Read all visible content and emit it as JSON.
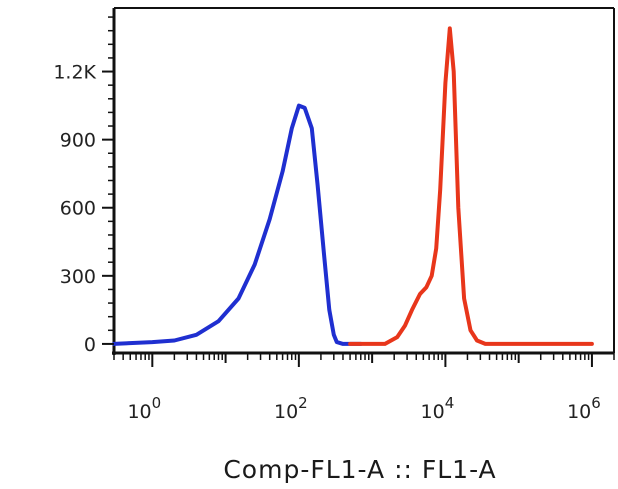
{
  "chart_data": {
    "type": "line",
    "title": "",
    "xlabel": "Comp-FL1-A :: FL1-A",
    "ylabel": "",
    "x_scale": "log",
    "xlim": [
      0.3,
      2000000
    ],
    "ylim": [
      -40,
      1480
    ],
    "grid": false,
    "legend": "none",
    "y_ticks": [
      {
        "value": 0,
        "label": "0"
      },
      {
        "value": 300,
        "label": "300"
      },
      {
        "value": 600,
        "label": "600"
      },
      {
        "value": 900,
        "label": "900"
      },
      {
        "value": 1200,
        "label": "1.2K"
      }
    ],
    "x_ticks": [
      {
        "value": 1,
        "base": "10",
        "exp": "0"
      },
      {
        "value": 100,
        "base": "10",
        "exp": "2"
      },
      {
        "value": 10000,
        "base": "10",
        "exp": "4"
      },
      {
        "value": 1000000,
        "base": "10",
        "exp": "6"
      }
    ],
    "series": [
      {
        "color": "#1f2fd0",
        "x": [
          0.3,
          1,
          2,
          4,
          8,
          15,
          25,
          40,
          60,
          80,
          100,
          120,
          150,
          180,
          220,
          260,
          300,
          330,
          400,
          500,
          700
        ],
        "y": [
          0,
          8,
          15,
          40,
          100,
          200,
          350,
          550,
          760,
          950,
          1050,
          1040,
          950,
          700,
          400,
          150,
          40,
          8,
          0,
          0,
          0
        ]
      },
      {
        "color": "#e8361b",
        "x": [
          500,
          1500,
          2200,
          2800,
          3500,
          4500,
          5500,
          6500,
          7500,
          8500,
          10000,
          11500,
          13000,
          15000,
          18000,
          22000,
          27000,
          35000,
          1000000
        ],
        "y": [
          0,
          0,
          30,
          80,
          150,
          220,
          250,
          300,
          420,
          680,
          1150,
          1390,
          1200,
          600,
          200,
          60,
          15,
          0,
          0
        ]
      }
    ]
  }
}
